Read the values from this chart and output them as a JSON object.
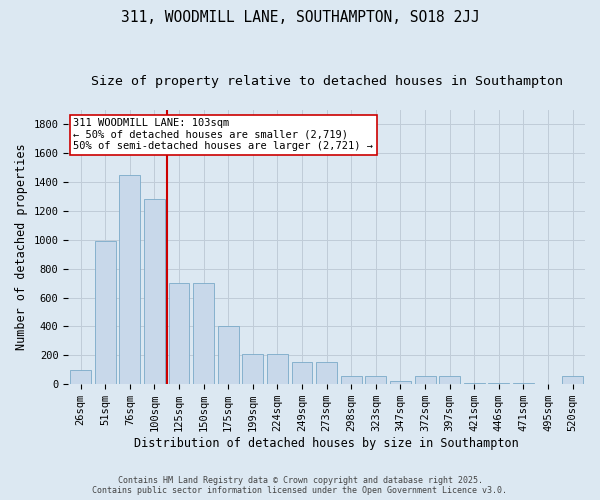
{
  "title_line1": "311, WOODMILL LANE, SOUTHAMPTON, SO18 2JJ",
  "title_line2": "Size of property relative to detached houses in Southampton",
  "xlabel": "Distribution of detached houses by size in Southampton",
  "ylabel": "Number of detached properties",
  "categories": [
    "26sqm",
    "51sqm",
    "76sqm",
    "100sqm",
    "125sqm",
    "150sqm",
    "175sqm",
    "199sqm",
    "224sqm",
    "249sqm",
    "273sqm",
    "298sqm",
    "323sqm",
    "347sqm",
    "372sqm",
    "397sqm",
    "421sqm",
    "446sqm",
    "471sqm",
    "495sqm",
    "520sqm"
  ],
  "values": [
    100,
    990,
    1450,
    1280,
    700,
    700,
    400,
    210,
    210,
    155,
    155,
    60,
    55,
    20,
    60,
    55,
    10,
    10,
    10,
    0,
    55
  ],
  "bar_color": "#c8d8ea",
  "bar_edge_color": "#7aaac8",
  "vline_index": 3,
  "vline_color": "#cc0000",
  "annotation_text": "311 WOODMILL LANE: 103sqm\n← 50% of detached houses are smaller (2,719)\n50% of semi-detached houses are larger (2,721) →",
  "annotation_box_color": "#ffffff",
  "annotation_box_edge": "#cc0000",
  "ylim": [
    0,
    1900
  ],
  "yticks": [
    0,
    200,
    400,
    600,
    800,
    1000,
    1200,
    1400,
    1600,
    1800
  ],
  "grid_color": "#c0ccd8",
  "background_color": "#dce8f2",
  "footer_text": "Contains HM Land Registry data © Crown copyright and database right 2025.\nContains public sector information licensed under the Open Government Licence v3.0.",
  "title_fontsize": 10.5,
  "subtitle_fontsize": 9.5,
  "axis_label_fontsize": 8.5,
  "tick_fontsize": 7.5,
  "annotation_fontsize": 7.5,
  "footer_fontsize": 6.0
}
